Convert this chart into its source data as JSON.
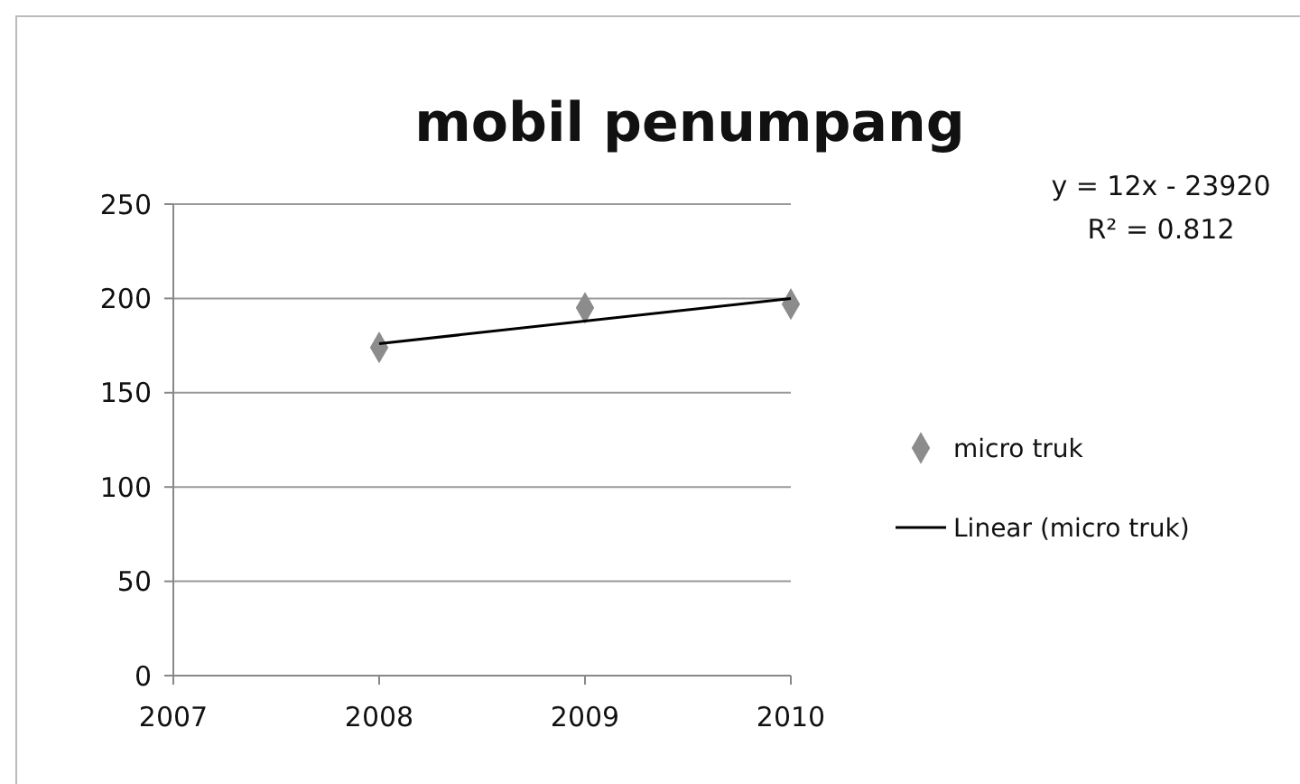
{
  "chart_data": {
    "type": "scatter",
    "title": "mobil penumpang",
    "x": [
      2008,
      2009,
      2010
    ],
    "series": [
      {
        "name": "micro truk",
        "color": "#8c8c8c",
        "values": [
          174,
          195,
          197
        ],
        "marker": "diamond"
      },
      {
        "name": "Linear (micro truk)",
        "type": "line",
        "color": "#000000",
        "x": [
          2008,
          2010
        ],
        "values": [
          176,
          200
        ],
        "marker": "none"
      }
    ],
    "xlim": [
      2007,
      2010
    ],
    "xticks": [
      2007,
      2008,
      2009,
      2010
    ],
    "ylim": [
      0,
      250
    ],
    "yticks": [
      0,
      50,
      100,
      150,
      200,
      250
    ],
    "grid": "y",
    "legend": "right",
    "annotations": [
      "y = 12x - 23920",
      "R² = 0.812"
    ]
  }
}
